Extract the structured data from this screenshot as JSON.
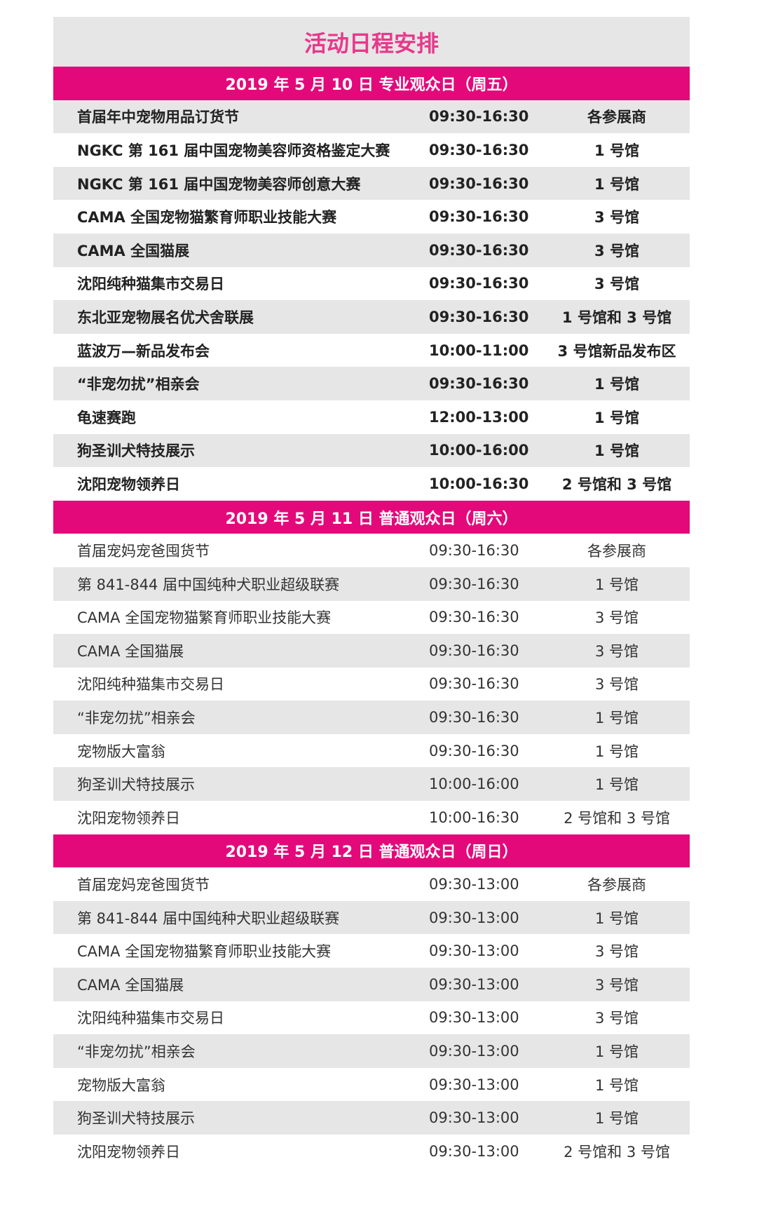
{
  "title": "活动日程安排",
  "sections": [
    {
      "heading": "2019 年 5 月 10 日  专业观众日（周五）",
      "rows": [
        [
          "首届年中宠物用品订货节",
          "09:30-16:30",
          "各参展商"
        ],
        [
          "NGKC 第 161 届中国宠物美容师资格鉴定大赛",
          "09:30-16:30",
          "1 号馆"
        ],
        [
          "NGKC 第 161 届中国宠物美容师创意大赛",
          "09:30-16:30",
          "1 号馆"
        ],
        [
          "CAMA 全国宠物猫繁育师职业技能大赛",
          "09:30-16:30",
          "3 号馆"
        ],
        [
          "CAMA 全国猫展",
          "09:30-16:30",
          "3 号馆"
        ],
        [
          "沈阳纯种猫集市交易日",
          "09:30-16:30",
          "3 号馆"
        ],
        [
          "东北亚宠物展名优犬舍联展",
          "09:30-16:30",
          "1 号馆和 3 号馆"
        ],
        [
          "蓝波万—新品发布会",
          "10:00-11:00",
          "3 号馆新品发布区"
        ],
        [
          "“非宠勿扰”相亲会",
          "09:30-16:30",
          "1 号馆"
        ],
        [
          "龟速赛跑",
          "12:00-13:00",
          "1 号馆"
        ],
        [
          "狗圣训犬特技展示",
          "10:00-16:00",
          "1 号馆"
        ],
        [
          "沈阳宠物领养日",
          "10:00-16:30",
          "2 号馆和 3 号馆"
        ]
      ]
    },
    {
      "heading": "2019 年 5 月 11 日  普通观众日（周六）",
      "rows": [
        [
          "首届宠妈宠爸囤货节",
          "09:30-16:30",
          "各参展商"
        ],
        [
          "第 841-844 届中国纯种犬职业超级联赛",
          "09:30-16:30",
          "1 号馆"
        ],
        [
          "CAMA 全国宠物猫繁育师职业技能大赛",
          "09:30-16:30",
          "3 号馆"
        ],
        [
          "CAMA 全国猫展",
          "09:30-16:30",
          "3 号馆"
        ],
        [
          "沈阳纯种猫集市交易日",
          "09:30-16:30",
          "3 号馆"
        ],
        [
          "“非宠勿扰”相亲会",
          "09:30-16:30",
          "1 号馆"
        ],
        [
          "宠物版大富翁",
          "09:30-16:30",
          "1 号馆"
        ],
        [
          "狗圣训犬特技展示",
          "10:00-16:00",
          "1 号馆"
        ],
        [
          "沈阳宠物领养日",
          "10:00-16:30",
          "2 号馆和 3 号馆"
        ]
      ]
    },
    {
      "heading": "2019 年 5 月 12 日  普通观众日（周日）",
      "rows": [
        [
          "首届宠妈宠爸囤货节",
          "09:30-13:00",
          "各参展商"
        ],
        [
          "第 841-844 届中国纯种犬职业超级联赛",
          "09:30-13:00",
          "1 号馆"
        ],
        [
          "CAMA 全国宠物猫繁育师职业技能大赛",
          "09:30-13:00",
          "3 号馆"
        ],
        [
          "CAMA 全国猫展",
          "09:30-13:00",
          "3 号馆"
        ],
        [
          "沈阳纯种猫集市交易日",
          "09:30-13:00",
          "3 号馆"
        ],
        [
          "“非宠勿扰”相亲会",
          "09:30-13:00",
          "1 号馆"
        ],
        [
          "宠物版大富翁",
          "09:30-13:00",
          "1 号馆"
        ],
        [
          "狗圣训犬特技展示",
          "09:30-13:00",
          "1 号馆"
        ],
        [
          "沈阳宠物领养日",
          "09:30-13:00",
          "2 号馆和 3 号馆"
        ]
      ]
    }
  ]
}
